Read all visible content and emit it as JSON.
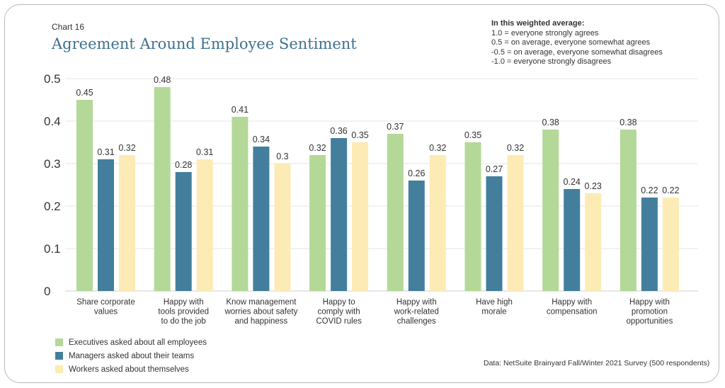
{
  "header": {
    "chart_number": "Chart 16",
    "title": "Agreement Around Employee Sentiment"
  },
  "note": {
    "heading": "In this weighted average:",
    "lines": [
      "1.0 = everyone strongly agrees",
      "0.5 = on average, everyone somewhat agrees",
      "-0.5 = on average, everyone somewhat disagrees",
      "-1.0 = everyone strongly disagrees"
    ]
  },
  "source": "Data: NetSuite Brainyard Fall/Winter 2021 Survey (500 respondents)",
  "chart_data": {
    "type": "bar",
    "title": "Agreement Around Employee Sentiment",
    "xlabel": "",
    "ylabel": "",
    "ylim": [
      0,
      0.5
    ],
    "yticks": [
      0,
      0.1,
      0.2,
      0.3,
      0.4,
      0.5
    ],
    "ytick_labels": [
      "0",
      "0.1",
      "0.2",
      "0.3",
      "0.4",
      "0.5"
    ],
    "grid": true,
    "legend_position": "bottom-left",
    "categories": [
      [
        "Share corporate",
        "values"
      ],
      [
        "Happy with",
        "tools provided",
        "to do the job"
      ],
      [
        "Know management",
        "worries about safety",
        "and happiness"
      ],
      [
        "Happy to",
        "comply with",
        "COVID rules"
      ],
      [
        "Happy with",
        "work-related",
        "challenges"
      ],
      [
        "Have high",
        "morale"
      ],
      [
        "Happy with",
        "compensation"
      ],
      [
        "Happy with",
        "promotion",
        "opportunities"
      ]
    ],
    "series": [
      {
        "name": "Executives asked about all employees",
        "color": "#b3d898",
        "values": [
          0.45,
          0.48,
          0.41,
          0.32,
          0.37,
          0.35,
          0.38,
          0.38
        ],
        "labels": [
          "0.45",
          "0.48",
          "0.41",
          "0.32",
          "0.37",
          "0.35",
          "0.38",
          "0.38"
        ]
      },
      {
        "name": "Managers asked about their teams",
        "color": "#437f9c",
        "values": [
          0.31,
          0.28,
          0.34,
          0.36,
          0.26,
          0.27,
          0.24,
          0.22
        ],
        "labels": [
          "0.31",
          "0.28",
          "0.34",
          "0.36",
          "0.26",
          "0.27",
          "0.24",
          "0.22"
        ]
      },
      {
        "name": "Workers asked about themselves",
        "color": "#fdebb5",
        "values": [
          0.32,
          0.31,
          0.3,
          0.35,
          0.32,
          0.32,
          0.23,
          0.22
        ],
        "labels": [
          "0.32",
          "0.31",
          "0.3",
          "0.35",
          "0.32",
          "0.32",
          "0.23",
          "0.22"
        ]
      }
    ]
  }
}
